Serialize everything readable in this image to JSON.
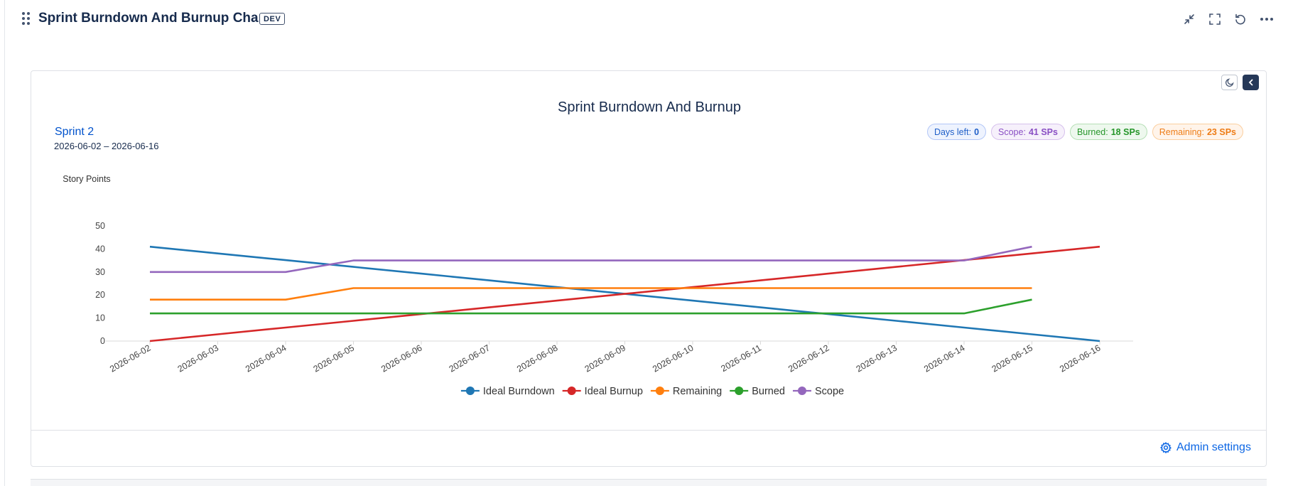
{
  "header": {
    "title": "Sprint Burndown And Burnup Chart",
    "badge": "DEV",
    "icons": [
      "minimize-icon",
      "fullscreen-icon",
      "refresh-icon",
      "more-icon"
    ]
  },
  "card": {
    "sprint_name": "Sprint 2",
    "sprint_dates": "2026-06-02 – 2026-06-16",
    "pills": {
      "days_left": {
        "label": "Days left:",
        "value": "0",
        "color": "#1f5fc8"
      },
      "scope": {
        "label": "Scope:",
        "value": "41 SPs",
        "color": "#8a4fc4"
      },
      "burned": {
        "label": "Burned:",
        "value": "18 SPs",
        "color": "#26962a"
      },
      "remaining": {
        "label": "Remaining:",
        "value": "23 SPs",
        "color": "#ee7c16"
      }
    },
    "admin_settings_label": "Admin settings"
  },
  "chart_data": {
    "type": "line",
    "title": "Sprint Burndown And Burnup",
    "xlabel": "",
    "ylabel": "Story Points",
    "ylim": [
      0,
      50
    ],
    "yticks": [
      0,
      10,
      20,
      30,
      40,
      50
    ],
    "grid": false,
    "legend_position": "bottom",
    "x": [
      "2026-06-02",
      "2026-06-03",
      "2026-06-04",
      "2026-06-05",
      "2026-06-06",
      "2026-06-07",
      "2026-06-08",
      "2026-06-09",
      "2026-06-10",
      "2026-06-11",
      "2026-06-12",
      "2026-06-13",
      "2026-06-14",
      "2026-06-15",
      "2026-06-16"
    ],
    "series": [
      {
        "name": "Ideal Burndown",
        "color": "#1f77b4",
        "values": [
          41,
          38.07,
          35.14,
          32.21,
          29.29,
          26.36,
          23.43,
          20.5,
          17.57,
          14.64,
          11.71,
          8.79,
          5.86,
          2.93,
          0
        ]
      },
      {
        "name": "Ideal Burnup",
        "color": "#d62728",
        "values": [
          0,
          2.93,
          5.86,
          8.79,
          11.71,
          14.64,
          17.57,
          20.5,
          23.43,
          26.36,
          29.29,
          32.21,
          35.14,
          38.07,
          41
        ]
      },
      {
        "name": "Remaining",
        "color": "#ff7f0e",
        "values": [
          18,
          18,
          18,
          23,
          23,
          23,
          23,
          23,
          23,
          23,
          23,
          23,
          23,
          23,
          null
        ]
      },
      {
        "name": "Burned",
        "color": "#2ca02c",
        "values": [
          12,
          12,
          12,
          12,
          12,
          12,
          12,
          12,
          12,
          12,
          12,
          12,
          12,
          18,
          null
        ]
      },
      {
        "name": "Scope",
        "color": "#9467bd",
        "values": [
          30,
          30,
          30,
          35,
          35,
          35,
          35,
          35,
          35,
          35,
          35,
          35,
          35,
          41,
          null
        ]
      }
    ]
  }
}
